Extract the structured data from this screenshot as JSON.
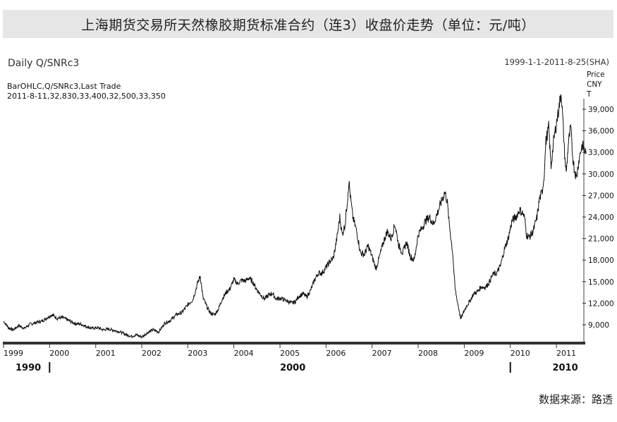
{
  "header": {
    "title": "上海期货交易所天然橡胶期货标准合约（连3）收盘价走势（单位：元/吨）",
    "chart_name": "Daily Q/SNRc3",
    "date_range": "1999-1-1-2011-8-25(SHA)",
    "series_desc": "BarOHLC,Q/SNRc3,Last Trade",
    "last_bar": "2011-8-11,32,830,33,400,32,500,33,350"
  },
  "unit_labels": [
    "Price",
    "CNY",
    "T"
  ],
  "source": "数据来源：路透",
  "chart_data": {
    "type": "line",
    "title": "上海期货交易所天然橡胶期货标准合约（连3）收盘价走势（单位：元/吨）",
    "xlabel": "",
    "ylabel": "Price CNY T",
    "ylim": [
      7000,
      42500
    ],
    "xlim": [
      "1999-01-01",
      "2011-08-25"
    ],
    "yticks": [
      9000,
      12000,
      15000,
      18000,
      21000,
      24000,
      27000,
      30000,
      33000,
      36000,
      39000
    ],
    "ytick_labels": [
      "9,000",
      "12,000",
      "15,000",
      "18,000",
      "21,000",
      "24,000",
      "27,000",
      "30,000",
      "33,000",
      "36,000",
      "39,000"
    ],
    "xtick_labels": [
      "1999",
      "2000",
      "2001",
      "2002",
      "2003",
      "2004",
      "2005",
      "2006",
      "2007",
      "2008",
      "2009",
      "2010",
      "2011"
    ],
    "decade_labels": [
      {
        "label": "1990",
        "date": "1999-01-01"
      },
      {
        "label": "2000",
        "date": "2005-01-01"
      },
      {
        "label": "2010",
        "date": "2010-12-01"
      }
    ],
    "decade_dividers": [
      "2000-01-01",
      "2010-01-01"
    ],
    "grid": false,
    "series": [
      {
        "color": "#111111",
        "points": [
          [
            "1999-01-01",
            9500
          ],
          [
            "1999-02-10",
            8600
          ],
          [
            "1999-03-20",
            8300
          ],
          [
            "1999-05-01",
            8900
          ],
          [
            "1999-06-15",
            8500
          ],
          [
            "1999-08-01",
            9100
          ],
          [
            "1999-09-15",
            9300
          ],
          [
            "1999-11-01",
            9500
          ],
          [
            "1999-12-15",
            10000
          ],
          [
            "2000-01-20",
            10400
          ],
          [
            "2000-03-01",
            9900
          ],
          [
            "2000-04-15",
            10000
          ],
          [
            "2000-06-01",
            9600
          ],
          [
            "2000-07-15",
            9200
          ],
          [
            "2000-09-01",
            9100
          ],
          [
            "2000-10-15",
            8800
          ],
          [
            "2000-12-01",
            8500
          ],
          [
            "2001-01-15",
            8600
          ],
          [
            "2001-03-01",
            8300
          ],
          [
            "2001-04-15",
            8400
          ],
          [
            "2001-06-01",
            8200
          ],
          [
            "2001-07-15",
            8000
          ],
          [
            "2001-09-01",
            7600
          ],
          [
            "2001-10-15",
            7400
          ],
          [
            "2001-11-20",
            7600
          ],
          [
            "2002-01-01",
            7300
          ],
          [
            "2002-02-15",
            7900
          ],
          [
            "2002-04-01",
            8300
          ],
          [
            "2002-05-15",
            8000
          ],
          [
            "2002-07-01",
            9200
          ],
          [
            "2002-08-15",
            9600
          ],
          [
            "2002-10-01",
            10400
          ],
          [
            "2002-11-15",
            10700
          ],
          [
            "2003-01-01",
            11800
          ],
          [
            "2003-02-10",
            12500
          ],
          [
            "2003-03-20",
            14800
          ],
          [
            "2003-04-10",
            15800
          ],
          [
            "2003-05-01",
            12800
          ],
          [
            "2003-06-01",
            11500
          ],
          [
            "2003-07-01",
            10600
          ],
          [
            "2003-08-01",
            10400
          ],
          [
            "2003-09-01",
            11200
          ],
          [
            "2003-10-01",
            12600
          ],
          [
            "2003-11-01",
            13500
          ],
          [
            "2003-12-01",
            14000
          ],
          [
            "2004-01-01",
            15300
          ],
          [
            "2004-02-01",
            14700
          ],
          [
            "2004-03-01",
            15200
          ],
          [
            "2004-04-01",
            15100
          ],
          [
            "2004-05-01",
            15500
          ],
          [
            "2004-06-01",
            14900
          ],
          [
            "2004-07-01",
            13900
          ],
          [
            "2004-08-01",
            13200
          ],
          [
            "2004-09-01",
            12600
          ],
          [
            "2004-10-01",
            13100
          ],
          [
            "2004-11-01",
            13400
          ],
          [
            "2004-12-01",
            12600
          ],
          [
            "2005-01-01",
            12700
          ],
          [
            "2005-02-01",
            12500
          ],
          [
            "2005-03-01",
            12300
          ],
          [
            "2005-04-01",
            12000
          ],
          [
            "2005-05-01",
            12200
          ],
          [
            "2005-06-01",
            13000
          ],
          [
            "2005-07-01",
            13300
          ],
          [
            "2005-08-01",
            12900
          ],
          [
            "2005-09-01",
            13800
          ],
          [
            "2005-10-01",
            15200
          ],
          [
            "2005-11-01",
            16200
          ],
          [
            "2005-12-01",
            16200
          ],
          [
            "2006-01-01",
            17000
          ],
          [
            "2006-02-01",
            17800
          ],
          [
            "2006-03-01",
            18300
          ],
          [
            "2006-04-01",
            21500
          ],
          [
            "2006-04-20",
            24000
          ],
          [
            "2006-05-10",
            21500
          ],
          [
            "2006-06-01",
            23000
          ],
          [
            "2006-06-20",
            26500
          ],
          [
            "2006-07-01",
            29000
          ],
          [
            "2006-07-15",
            26500
          ],
          [
            "2006-08-01",
            24000
          ],
          [
            "2006-09-01",
            22000
          ],
          [
            "2006-10-01",
            19000
          ],
          [
            "2006-11-01",
            18800
          ],
          [
            "2006-12-01",
            20000
          ],
          [
            "2007-01-01",
            18500
          ],
          [
            "2007-02-01",
            16800
          ],
          [
            "2007-03-01",
            18500
          ],
          [
            "2007-04-01",
            20500
          ],
          [
            "2007-05-01",
            22000
          ],
          [
            "2007-06-01",
            21000
          ],
          [
            "2007-07-01",
            23000
          ],
          [
            "2007-08-01",
            20000
          ],
          [
            "2007-09-01",
            19000
          ],
          [
            "2007-10-01",
            20500
          ],
          [
            "2007-11-01",
            18500
          ],
          [
            "2007-12-01",
            18000
          ],
          [
            "2008-01-01",
            21500
          ],
          [
            "2008-02-01",
            22500
          ],
          [
            "2008-03-01",
            23500
          ],
          [
            "2008-04-01",
            24000
          ],
          [
            "2008-05-01",
            23000
          ],
          [
            "2008-06-01",
            24500
          ],
          [
            "2008-07-01",
            26000
          ],
          [
            "2008-08-01",
            27500
          ],
          [
            "2008-08-20",
            26000
          ],
          [
            "2008-09-01",
            23500
          ],
          [
            "2008-10-01",
            19000
          ],
          [
            "2008-10-20",
            14000
          ],
          [
            "2008-11-10",
            12000
          ],
          [
            "2008-12-05",
            9800
          ],
          [
            "2008-12-20",
            10500
          ],
          [
            "2009-01-15",
            11500
          ],
          [
            "2009-02-15",
            12300
          ],
          [
            "2009-03-15",
            13300
          ],
          [
            "2009-04-15",
            13600
          ],
          [
            "2009-05-15",
            14300
          ],
          [
            "2009-06-15",
            14200
          ],
          [
            "2009-07-15",
            14800
          ],
          [
            "2009-08-15",
            16000
          ],
          [
            "2009-09-15",
            16200
          ],
          [
            "2009-10-15",
            17200
          ],
          [
            "2009-11-15",
            19500
          ],
          [
            "2009-12-15",
            21000
          ],
          [
            "2010-01-15",
            23500
          ],
          [
            "2010-02-15",
            24000
          ],
          [
            "2010-03-15",
            25000
          ],
          [
            "2010-04-10",
            24500
          ],
          [
            "2010-04-25",
            23800
          ],
          [
            "2010-05-10",
            21500
          ],
          [
            "2010-06-01",
            21200
          ],
          [
            "2010-07-01",
            22000
          ],
          [
            "2010-08-01",
            24000
          ],
          [
            "2010-08-20",
            26500
          ],
          [
            "2010-09-10",
            27500
          ],
          [
            "2010-09-25",
            29500
          ],
          [
            "2010-10-10",
            34500
          ],
          [
            "2010-11-01",
            36500
          ],
          [
            "2010-11-20",
            31000
          ],
          [
            "2010-12-10",
            34500
          ],
          [
            "2011-01-01",
            37000
          ],
          [
            "2011-01-20",
            39000
          ],
          [
            "2011-02-08",
            41500
          ],
          [
            "2011-02-20",
            38000
          ],
          [
            "2011-03-05",
            33500
          ],
          [
            "2011-03-20",
            30000
          ],
          [
            "2011-04-05",
            34000
          ],
          [
            "2011-04-25",
            36500
          ],
          [
            "2011-05-10",
            32500
          ],
          [
            "2011-05-25",
            30500
          ],
          [
            "2011-06-10",
            29500
          ],
          [
            "2011-06-25",
            31500
          ],
          [
            "2011-07-10",
            33000
          ],
          [
            "2011-07-25",
            34000
          ],
          [
            "2011-08-11",
            33350
          ],
          [
            "2011-08-25",
            32800
          ]
        ]
      }
    ]
  }
}
